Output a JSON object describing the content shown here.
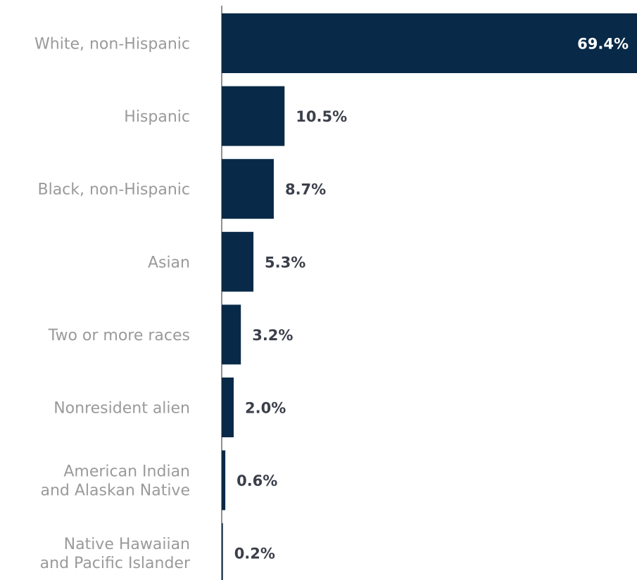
{
  "chart_data": {
    "type": "bar",
    "orientation": "horizontal",
    "categories": [
      [
        "White, non-Hispanic"
      ],
      [
        "Hispanic"
      ],
      [
        "Black, non-Hispanic"
      ],
      [
        "Asian"
      ],
      [
        "Two or more races"
      ],
      [
        "Nonresident alien"
      ],
      [
        "American Indian",
        "and Alaskan Native"
      ],
      [
        "Native Hawaiian",
        "and Pacific Islander"
      ]
    ],
    "values": [
      69.4,
      10.5,
      8.7,
      5.3,
      3.2,
      2.0,
      0.6,
      0.2
    ],
    "value_labels": [
      "69.4%",
      "10.5%",
      "8.7%",
      "5.3%",
      "3.2%",
      "2.0%",
      "0.6%",
      "0.2%"
    ],
    "title": "",
    "xlabel": "",
    "ylabel": "",
    "xlim": [
      0,
      69.4
    ],
    "grid": false,
    "legend": "none"
  },
  "colors": {
    "bar": "#082a48",
    "value_label_outside": "#3b3f4a",
    "value_label_inside": "#ffffff",
    "category_label": "#9a9a9a",
    "axis_line": "#222222"
  }
}
